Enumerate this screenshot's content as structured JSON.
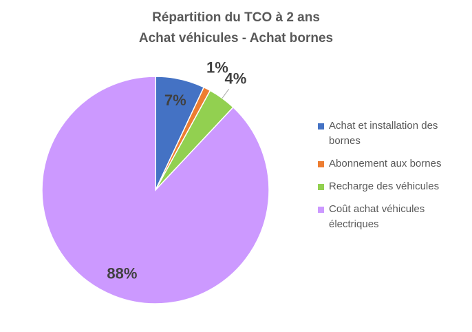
{
  "chart_data": {
    "type": "pie",
    "title": "Répartition du TCO à 2 ans",
    "subtitle": "Achat véhicules - Achat bornes",
    "categories": [
      "Achat et installation des bornes",
      "Abonnement aux bornes",
      "Recharge des véhicules",
      "Coût achat véhicules électriques"
    ],
    "values": [
      7,
      1,
      4,
      88
    ],
    "value_labels": [
      "7%",
      "1%",
      "4%",
      "88%"
    ],
    "colors": [
      "#4472c4",
      "#ed7d31",
      "#92d050",
      "#cc99ff"
    ],
    "legend": "right"
  }
}
